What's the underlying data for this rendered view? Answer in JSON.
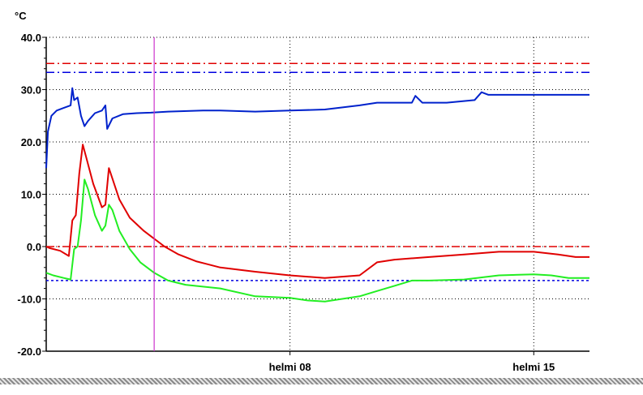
{
  "chart_data": {
    "type": "line",
    "unit_label": "°C",
    "ylim": [
      -20,
      40
    ],
    "yticks": [
      "40.0",
      "30.0",
      "20.0",
      "10.0",
      "0.0",
      "-10.0",
      "-20.0"
    ],
    "ytick_values": [
      40,
      30,
      20,
      10,
      0,
      -10,
      -20
    ],
    "xlim": [
      0,
      15.6
    ],
    "xticks": [
      {
        "label": "helmi 08",
        "x": 7
      },
      {
        "label": "helmi 15",
        "x": 14
      }
    ],
    "grid": true,
    "cursor_x": 3.1,
    "reference_lines": [
      {
        "y": 35.0,
        "color": "#e00000",
        "style": "dashdot"
      },
      {
        "y": 33.3,
        "color": "#0000e0",
        "style": "dashdot"
      },
      {
        "y": 0.0,
        "color": "#e00000",
        "style": "dashdot"
      },
      {
        "y": -6.5,
        "color": "#0000e0",
        "style": "dotted"
      }
    ],
    "series": [
      {
        "color": "#0022cc",
        "points": [
          [
            0,
            15
          ],
          [
            0.05,
            22
          ],
          [
            0.15,
            25
          ],
          [
            0.3,
            26
          ],
          [
            0.5,
            26.5
          ],
          [
            0.7,
            27
          ],
          [
            0.75,
            30.3
          ],
          [
            0.8,
            28
          ],
          [
            0.9,
            28.5
          ],
          [
            1.0,
            25
          ],
          [
            1.1,
            23
          ],
          [
            1.2,
            24
          ],
          [
            1.4,
            25.5
          ],
          [
            1.6,
            26
          ],
          [
            1.7,
            27
          ],
          [
            1.75,
            22.5
          ],
          [
            1.9,
            24.5
          ],
          [
            2.2,
            25.3
          ],
          [
            2.6,
            25.5
          ],
          [
            3.0,
            25.6
          ],
          [
            3.5,
            25.8
          ],
          [
            4.5,
            26
          ],
          [
            5,
            26
          ],
          [
            6,
            25.8
          ],
          [
            7,
            26
          ],
          [
            8,
            26.2
          ],
          [
            9,
            27
          ],
          [
            9.5,
            27.5
          ],
          [
            10,
            27.5
          ],
          [
            10.5,
            27.5
          ],
          [
            10.6,
            28.8
          ],
          [
            10.8,
            27.5
          ],
          [
            11.5,
            27.5
          ],
          [
            12.3,
            28
          ],
          [
            12.5,
            29.5
          ],
          [
            12.7,
            29
          ],
          [
            13.5,
            29
          ],
          [
            14.5,
            29
          ],
          [
            15.6,
            29
          ]
        ]
      },
      {
        "color": "#e00000",
        "points": [
          [
            0,
            0
          ],
          [
            0.1,
            -0.3
          ],
          [
            0.4,
            -0.8
          ],
          [
            0.65,
            -1.8
          ],
          [
            0.75,
            5
          ],
          [
            0.85,
            6
          ],
          [
            0.95,
            14
          ],
          [
            1.05,
            19.5
          ],
          [
            1.15,
            17
          ],
          [
            1.35,
            12
          ],
          [
            1.6,
            7.5
          ],
          [
            1.7,
            8
          ],
          [
            1.8,
            15
          ],
          [
            1.9,
            13
          ],
          [
            2.1,
            9
          ],
          [
            2.4,
            5.5
          ],
          [
            2.8,
            3
          ],
          [
            3.1,
            1.5
          ],
          [
            3.4,
            0
          ],
          [
            3.8,
            -1.5
          ],
          [
            4.3,
            -2.8
          ],
          [
            5,
            -4
          ],
          [
            6,
            -4.8
          ],
          [
            7,
            -5.5
          ],
          [
            8,
            -6
          ],
          [
            9,
            -5.5
          ],
          [
            9.5,
            -3
          ],
          [
            10,
            -2.5
          ],
          [
            11,
            -2
          ],
          [
            12,
            -1.5
          ],
          [
            13,
            -1
          ],
          [
            14,
            -1
          ],
          [
            14.7,
            -1.5
          ],
          [
            15.2,
            -2
          ],
          [
            15.6,
            -2
          ]
        ]
      },
      {
        "color": "#22ee22",
        "points": [
          [
            0,
            -5
          ],
          [
            0.2,
            -5.5
          ],
          [
            0.5,
            -6
          ],
          [
            0.7,
            -6.3
          ],
          [
            0.8,
            -0.5
          ],
          [
            0.9,
            0
          ],
          [
            1.0,
            5
          ],
          [
            1.1,
            12.8
          ],
          [
            1.2,
            11
          ],
          [
            1.4,
            6
          ],
          [
            1.6,
            3
          ],
          [
            1.7,
            4
          ],
          [
            1.8,
            8
          ],
          [
            1.9,
            7
          ],
          [
            2.1,
            3
          ],
          [
            2.4,
            -0.5
          ],
          [
            2.7,
            -3
          ],
          [
            3.1,
            -5
          ],
          [
            3.5,
            -6.5
          ],
          [
            4,
            -7.3
          ],
          [
            5,
            -8
          ],
          [
            6,
            -9.5
          ],
          [
            7,
            -9.8
          ],
          [
            7.5,
            -10.3
          ],
          [
            8,
            -10.5
          ],
          [
            8.5,
            -10
          ],
          [
            9,
            -9.5
          ],
          [
            9.5,
            -8.5
          ],
          [
            10,
            -7.5
          ],
          [
            10.5,
            -6.5
          ],
          [
            11,
            -6.5
          ],
          [
            12,
            -6.3
          ],
          [
            13,
            -5.5
          ],
          [
            14,
            -5.3
          ],
          [
            14.5,
            -5.5
          ],
          [
            15,
            -6
          ],
          [
            15.6,
            -6
          ]
        ]
      }
    ]
  }
}
